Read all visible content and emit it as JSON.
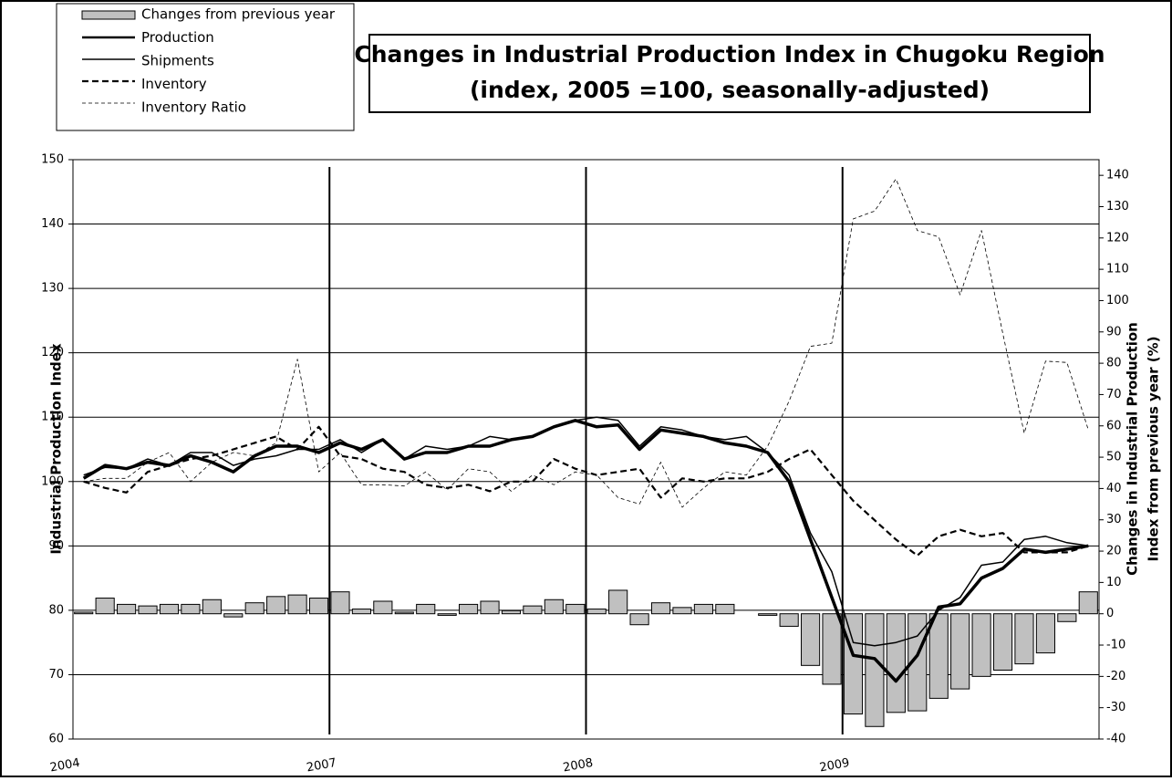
{
  "chart_data": {
    "type": "bar-line",
    "title": "Changes in Industrial Production Index in Chugoku Region",
    "subtitle": "(index, 2005 =100, seasonally-adjusted)",
    "ylabel": "Industrial Production Index",
    "y2label": [
      "Changes in Industrial Production",
      "Index from previous year (%)"
    ],
    "categories": [
      "2004",
      null,
      null,
      null,
      null,
      null,
      null,
      null,
      null,
      null,
      null,
      null,
      "2007",
      null,
      null,
      null,
      null,
      null,
      null,
      null,
      null,
      null,
      null,
      null,
      "2008",
      null,
      null,
      null,
      null,
      null,
      null,
      null,
      null,
      null,
      null,
      null,
      "2009",
      null,
      null,
      null,
      null,
      null,
      null,
      null,
      null,
      null,
      null,
      null
    ],
    "series": [
      {
        "name": "Changes from previous year",
        "kind": "bar",
        "axis": "y2",
        "color": "#c0c0c0",
        "values": [
          0.5,
          5,
          3,
          2.5,
          3,
          3,
          4.5,
          -1,
          3.5,
          5.5,
          6,
          5,
          7,
          1.5,
          4,
          0.5,
          3,
          -0.5,
          3,
          4,
          1,
          2.5,
          4.5,
          3,
          1.5,
          7.5,
          -3.5,
          3.5,
          2,
          3,
          3,
          null,
          -0.5,
          -4,
          -16.5,
          -22.5,
          -32,
          -36,
          -31.5,
          -31,
          -27,
          -24,
          -20,
          -18,
          -16,
          -12.5,
          -2.5,
          7
        ]
      },
      {
        "name": "Production",
        "kind": "line",
        "color": "#000000",
        "width": 3.5,
        "dash": "none",
        "values": [
          100.5,
          102.5,
          102,
          103,
          102.5,
          104,
          103,
          101.5,
          104,
          105.5,
          105.5,
          104.5,
          106,
          105,
          106.5,
          103.5,
          104.5,
          104.5,
          105.5,
          105.5,
          106.5,
          107,
          108.5,
          109.5,
          108.5,
          108.8,
          105,
          108,
          107.5,
          107,
          106,
          105.5,
          104.5,
          100,
          91,
          82,
          73,
          72.5,
          69,
          73,
          80.5,
          81,
          85,
          86.5,
          89.5,
          89,
          89.5,
          90
        ]
      },
      {
        "name": "Shipments",
        "kind": "line",
        "color": "#000000",
        "width": 1.5,
        "dash": "none",
        "values": [
          101,
          102.2,
          102,
          103.5,
          102.5,
          104.5,
          104.5,
          102.5,
          103.5,
          104,
          105,
          105,
          106.5,
          104.5,
          106.5,
          103.5,
          105.5,
          105,
          105.5,
          107,
          106.5,
          107,
          108.5,
          109.5,
          110,
          109.5,
          105.5,
          108.5,
          108,
          107,
          106.5,
          107,
          104.5,
          101,
          92,
          86,
          75,
          74.5,
          75,
          76,
          80,
          82,
          87,
          87.5,
          91,
          91.5,
          90.5,
          90
        ]
      },
      {
        "name": "Inventory",
        "kind": "line",
        "color": "#000000",
        "width": 2.2,
        "dash": "7,4",
        "values": [
          100,
          99,
          98.3,
          101.5,
          102.5,
          103.5,
          104,
          105,
          106,
          107,
          105,
          108.5,
          104,
          103.5,
          102,
          101.5,
          99.5,
          99,
          99.5,
          98.5,
          100,
          100,
          103.5,
          102,
          101,
          101.5,
          102,
          97.5,
          100.5,
          100,
          100.5,
          100.5,
          101.5,
          103.5,
          105,
          101,
          97,
          94,
          91,
          88.5,
          91.5,
          92.5,
          91.5,
          92,
          89,
          89,
          89,
          90
        ]
      },
      {
        "name": "Inventory Ratio",
        "kind": "line",
        "color": "#000000",
        "width": 0.8,
        "dash": "4,3",
        "values": [
          100,
          100.5,
          100.5,
          103,
          104.5,
          100,
          103,
          104.5,
          104,
          106,
          119,
          101.5,
          104.5,
          99.5,
          99.5,
          99.3,
          101.5,
          98.7,
          102,
          101.5,
          98.5,
          101,
          99.5,
          101.5,
          101,
          97.5,
          96.5,
          103,
          96,
          99,
          101.5,
          101,
          105.5,
          112.5,
          121,
          121.5,
          140.8,
          142,
          147,
          139,
          138,
          129,
          139,
          123,
          107.5,
          118.7,
          118.5,
          108
        ]
      }
    ],
    "ylim": [
      60,
      150
    ],
    "yticks": [
      60,
      70,
      80,
      90,
      100,
      110,
      120,
      130,
      140,
      150
    ],
    "y2lim": [
      -40,
      145
    ],
    "y2ticks": [
      -40,
      -30,
      -20,
      -10,
      0,
      10,
      20,
      30,
      40,
      50,
      60,
      70,
      80,
      90,
      100,
      110,
      120,
      130,
      140
    ],
    "grid": true
  }
}
